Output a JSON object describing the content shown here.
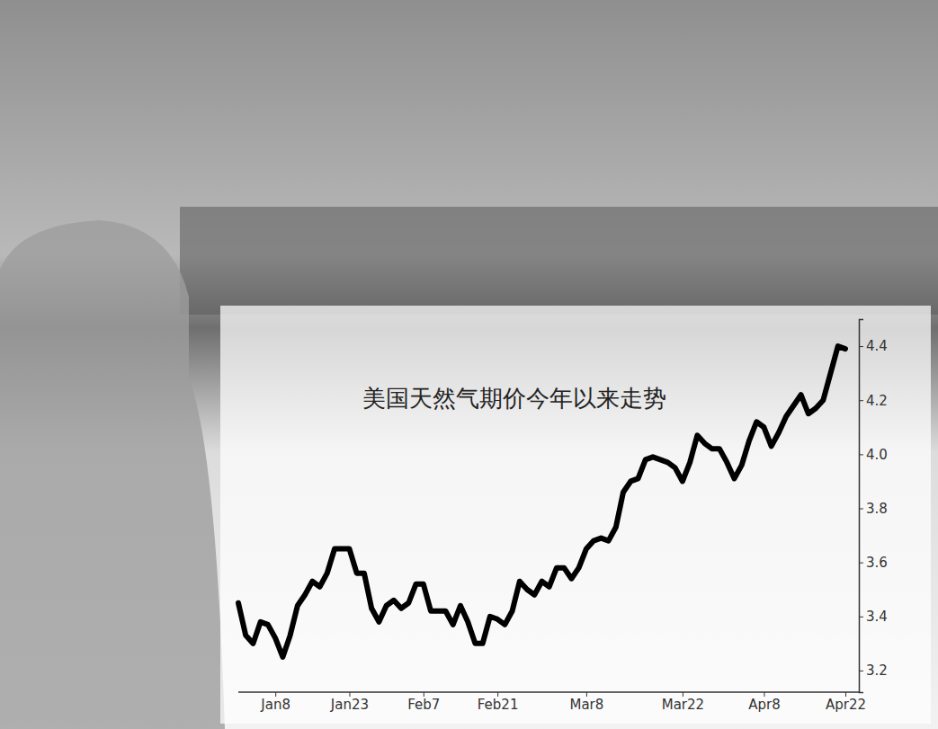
{
  "chart_data": {
    "type": "line",
    "title": "美国天然气期价今年以来走势",
    "categories": [
      null,
      null,
      null,
      null,
      null,
      "Jan8",
      null,
      null,
      null,
      null,
      null,
      null,
      null,
      null,
      null,
      "Jan23",
      null,
      null,
      null,
      null,
      null,
      null,
      null,
      null,
      null,
      "Feb7",
      null,
      null,
      null,
      null,
      null,
      null,
      null,
      null,
      null,
      "Feb21",
      null,
      null,
      null,
      null,
      null,
      null,
      null,
      null,
      null,
      null,
      null,
      "Mar8",
      null,
      null,
      null,
      null,
      null,
      null,
      null,
      null,
      null,
      null,
      null,
      null,
      "Mar22",
      null,
      null,
      null,
      null,
      null,
      null,
      null,
      null,
      null,
      null,
      "Apr8",
      null,
      null,
      null,
      null,
      null,
      null,
      null,
      null,
      null,
      null,
      "Apr22"
    ],
    "values": [
      3.45,
      3.33,
      3.3,
      3.38,
      3.37,
      3.32,
      3.25,
      3.33,
      3.44,
      3.48,
      3.53,
      3.51,
      3.56,
      3.65,
      3.65,
      3.65,
      3.56,
      3.56,
      3.43,
      3.38,
      3.44,
      3.46,
      3.43,
      3.45,
      3.52,
      3.52,
      3.42,
      3.42,
      3.42,
      3.37,
      3.44,
      3.38,
      3.3,
      3.3,
      3.4,
      3.39,
      3.37,
      3.42,
      3.53,
      3.5,
      3.48,
      3.53,
      3.51,
      3.58,
      3.58,
      3.54,
      3.58,
      3.65,
      3.68,
      3.69,
      3.68,
      3.73,
      3.86,
      3.9,
      3.91,
      3.98,
      3.99,
      3.98,
      3.97,
      3.95,
      3.9,
      3.97,
      4.07,
      4.04,
      4.02,
      4.02,
      3.97,
      3.91,
      3.96,
      4.05,
      4.12,
      4.1,
      4.03,
      4.08,
      4.14,
      4.18,
      4.22,
      4.15,
      4.17,
      4.2,
      4.3,
      4.4,
      4.39
    ],
    "color": "#000000",
    "ylim": [
      3.12,
      4.5
    ],
    "yticks": [
      3.2,
      3.4,
      3.6,
      3.8,
      {
        "value": 4,
        "label": "4.0"
      },
      4.2,
      4.4
    ],
    "grid": false
  }
}
